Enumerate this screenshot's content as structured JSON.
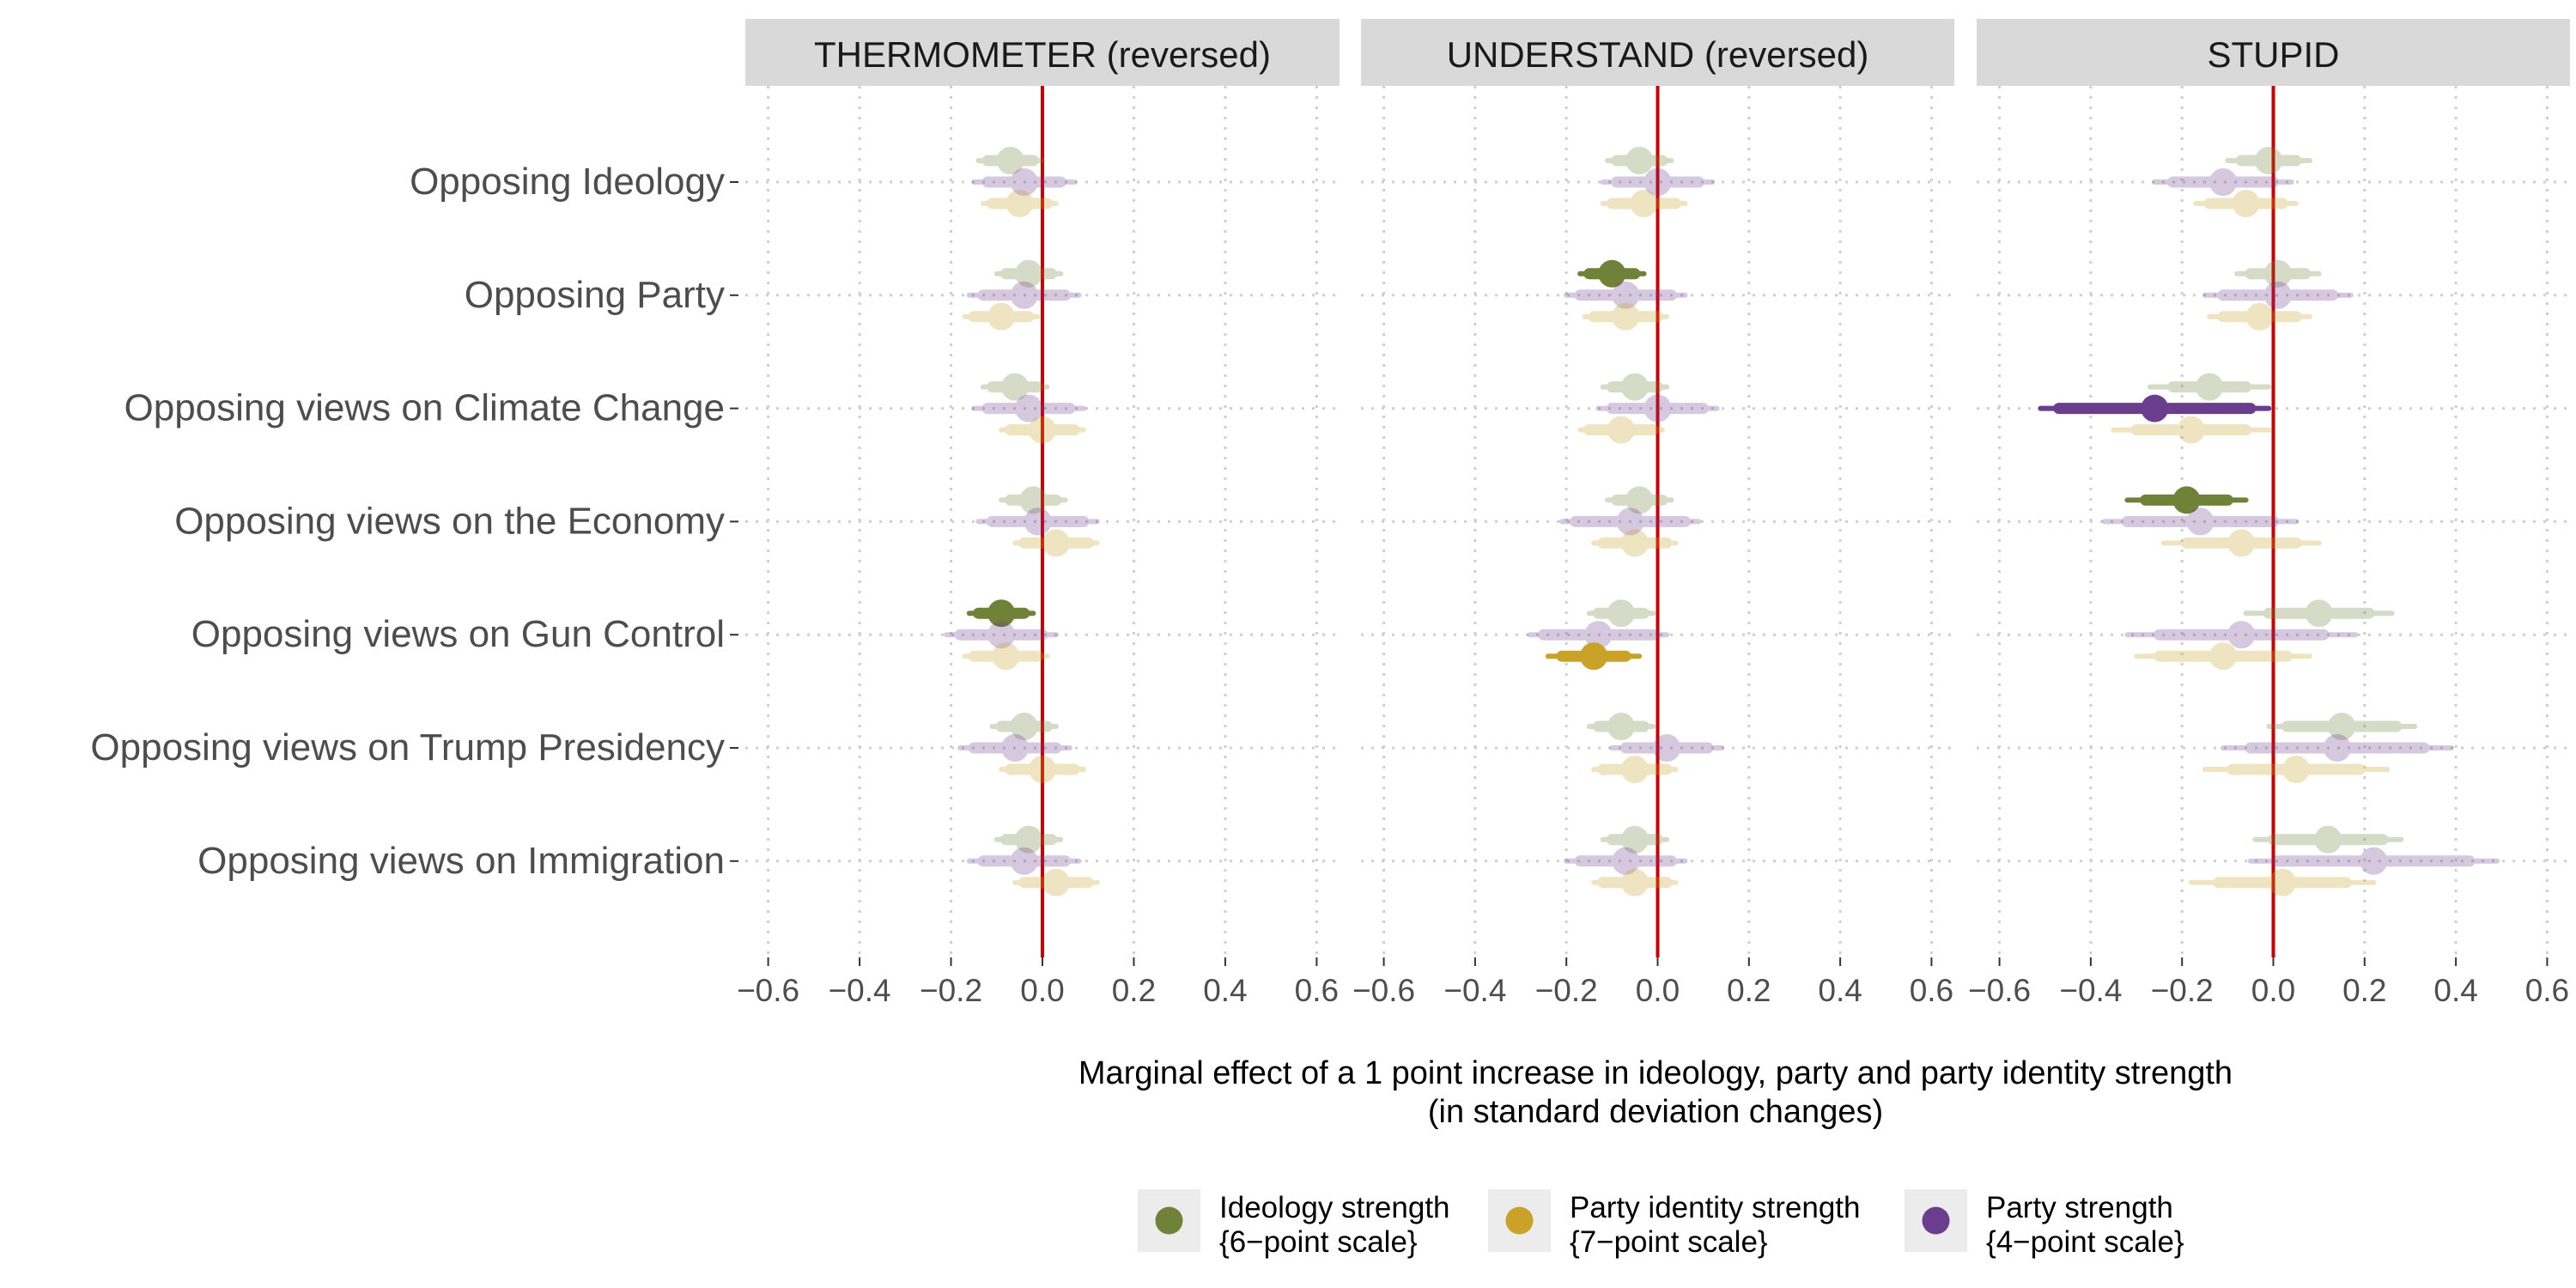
{
  "chart_data": {
    "type": "scatter",
    "subtype": "coefficient-plot-faceted",
    "panels": [
      "THERMOMETER (reversed)",
      "UNDERSTAND (reversed)",
      "STUPID"
    ],
    "categories": [
      "Opposing Ideology",
      "Opposing Party",
      "Opposing views on Climate Change",
      "Opposing views on the Economy",
      "Opposing views on Gun Control",
      "Opposing views on Trump Presidency",
      "Opposing views on Immigration"
    ],
    "xlim": [
      -0.65,
      0.65
    ],
    "xticks": [
      "-0.6",
      "-0.4",
      "-0.2",
      "0.0",
      "0.2",
      "0.4",
      "0.6"
    ],
    "xtick_values": [
      -0.6,
      -0.4,
      -0.2,
      0.0,
      0.2,
      0.4,
      0.6
    ],
    "xlabel_line1": "Marginal effect of a 1 point increase in ideology, party and party identity strength",
    "xlabel_line2": "(in standard deviation changes)",
    "reference_line": 0,
    "grid": true,
    "legend_position": "bottom",
    "series": [
      {
        "name": "Ideology strength",
        "name_line2": "{6−point scale}",
        "color": "#708238",
        "offset": 1,
        "estimates": [
          [
            -0.07,
            -0.03,
            -0.06,
            -0.02,
            -0.09,
            -0.04,
            -0.03
          ],
          [
            -0.04,
            -0.1,
            -0.05,
            -0.04,
            -0.08,
            -0.08,
            -0.05
          ],
          [
            -0.01,
            0.01,
            -0.14,
            -0.19,
            0.1,
            0.15,
            0.12
          ]
        ],
        "ci_inner": [
          [
            0.05,
            0.05,
            0.05,
            0.05,
            0.05,
            0.05,
            0.05
          ],
          [
            0.05,
            0.05,
            0.05,
            0.05,
            0.05,
            0.05,
            0.05
          ],
          [
            0.06,
            0.06,
            0.08,
            0.09,
            0.11,
            0.12,
            0.12
          ]
        ],
        "ci_outer": [
          [
            0.07,
            0.07,
            0.07,
            0.07,
            0.07,
            0.07,
            0.07
          ],
          [
            0.07,
            0.07,
            0.07,
            0.07,
            0.07,
            0.07,
            0.07
          ],
          [
            0.09,
            0.09,
            0.13,
            0.13,
            0.16,
            0.16,
            0.16
          ]
        ],
        "significant": [
          [
            false,
            false,
            false,
            false,
            true,
            false,
            false
          ],
          [
            false,
            true,
            false,
            false,
            false,
            false,
            false
          ],
          [
            false,
            false,
            false,
            true,
            false,
            false,
            false
          ]
        ]
      },
      {
        "name": "Party strength",
        "name_line2": "{4−point scale}",
        "color": "#6a3d8f",
        "offset": 0,
        "estimates": [
          [
            -0.04,
            -0.04,
            -0.03,
            -0.01,
            -0.09,
            -0.06,
            -0.04
          ],
          [
            0.0,
            -0.07,
            0.0,
            -0.06,
            -0.13,
            0.02,
            -0.07
          ],
          [
            -0.11,
            0.01,
            -0.26,
            -0.16,
            -0.07,
            0.14,
            0.22
          ]
        ],
        "ci_inner": [
          [
            0.08,
            0.09,
            0.09,
            0.1,
            0.09,
            0.09,
            0.09
          ],
          [
            0.09,
            0.1,
            0.1,
            0.12,
            0.12,
            0.09,
            0.1
          ],
          [
            0.11,
            0.12,
            0.21,
            0.16,
            0.18,
            0.19,
            0.21
          ]
        ],
        "ci_outer": [
          [
            0.11,
            0.12,
            0.12,
            0.13,
            0.12,
            0.12,
            0.12
          ],
          [
            0.12,
            0.13,
            0.13,
            0.15,
            0.15,
            0.12,
            0.13
          ],
          [
            0.15,
            0.16,
            0.25,
            0.21,
            0.25,
            0.25,
            0.27
          ]
        ],
        "significant": [
          [
            false,
            false,
            false,
            false,
            false,
            false,
            false
          ],
          [
            false,
            false,
            false,
            false,
            false,
            false,
            false
          ],
          [
            false,
            false,
            true,
            false,
            false,
            false,
            false
          ]
        ]
      },
      {
        "name": "Party identity strength",
        "name_line2": "{7−point scale}",
        "color": "#c9a227",
        "offset": -1,
        "estimates": [
          [
            -0.05,
            -0.09,
            0.0,
            0.03,
            -0.08,
            0.0,
            0.03
          ],
          [
            -0.03,
            -0.07,
            -0.08,
            -0.05,
            -0.14,
            -0.05,
            -0.05
          ],
          [
            -0.06,
            -0.03,
            -0.18,
            -0.07,
            -0.11,
            0.05,
            0.02
          ]
        ],
        "ci_inner": [
          [
            0.06,
            0.06,
            0.07,
            0.07,
            0.07,
            0.07,
            0.07
          ],
          [
            0.07,
            0.07,
            0.07,
            0.07,
            0.07,
            0.07,
            0.07
          ],
          [
            0.08,
            0.08,
            0.12,
            0.12,
            0.14,
            0.14,
            0.14
          ]
        ],
        "ci_outer": [
          [
            0.08,
            0.08,
            0.09,
            0.09,
            0.09,
            0.09,
            0.09
          ],
          [
            0.09,
            0.09,
            0.09,
            0.09,
            0.1,
            0.09,
            0.09
          ],
          [
            0.11,
            0.11,
            0.17,
            0.17,
            0.19,
            0.2,
            0.2
          ]
        ],
        "significant": [
          [
            false,
            false,
            false,
            false,
            false,
            false,
            false
          ],
          [
            false,
            false,
            false,
            false,
            true,
            false,
            false
          ],
          [
            false,
            false,
            false,
            false,
            false,
            false,
            false
          ]
        ]
      }
    ],
    "legend_order": [
      0,
      2,
      1
    ]
  }
}
